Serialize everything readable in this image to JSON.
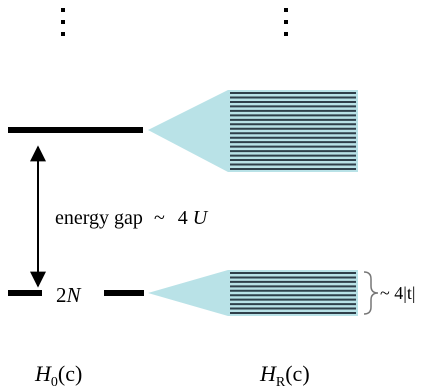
{
  "labels": {
    "energy_gap": "energy gap",
    "tilde": "~",
    "four": "4",
    "U": "U",
    "two": "2",
    "N": "N",
    "bracket_label": "~ 4|t|",
    "left_H": "H",
    "left_sub": "0",
    "left_arg": "(c)",
    "right_H": "H",
    "right_sub": "R",
    "right_arg": "(c)"
  },
  "colors": {
    "cone": "#b9e2e7",
    "bands": "#2f3f4a",
    "bracket": "#777777",
    "lines": "#000000"
  },
  "icons": {
    "ellipsis_left": "vertical-ellipsis",
    "ellipsis_right": "vertical-ellipsis",
    "gap_arrow": "double-arrow-vertical"
  }
}
